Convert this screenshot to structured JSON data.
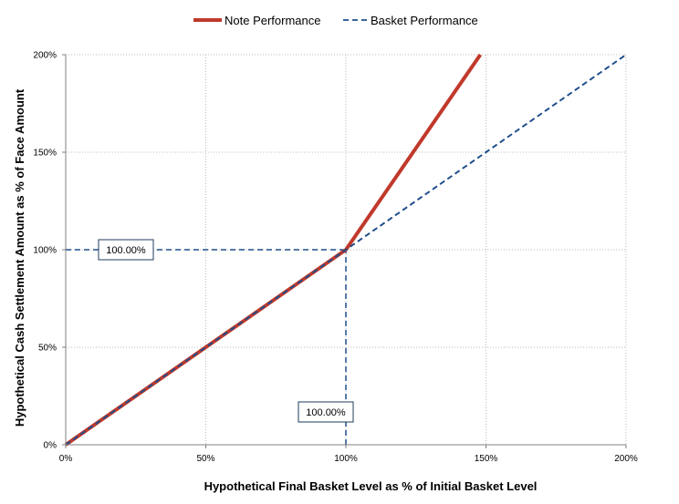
{
  "chart_data": {
    "type": "line",
    "xlabel": "Hypothetical Final Basket Level as % of Initial Basket Level",
    "ylabel": "Hypothetical Cash Settlement Amount as % of Face Amount",
    "xlim": [
      0,
      200
    ],
    "ylim": [
      0,
      200
    ],
    "xticks": [
      "0%",
      "50%",
      "100%",
      "150%",
      "200%"
    ],
    "yticks": [
      "0%",
      "50%",
      "100%",
      "150%",
      "200%"
    ],
    "grid": "dotted",
    "legend": "top-center",
    "series": [
      {
        "name": "Note Performance",
        "style": "solid",
        "color": "#c0392b",
        "x": [
          0,
          100,
          148
        ],
        "y": [
          0,
          100,
          200
        ]
      },
      {
        "name": "Basket Performance",
        "style": "dashed",
        "color": "#1f4e8c",
        "x": [
          0,
          100,
          200
        ],
        "y": [
          0,
          100,
          200
        ]
      }
    ],
    "reference_lines": [
      {
        "orientation": "horizontal",
        "x": [
          0,
          100
        ],
        "y": [
          100,
          100
        ]
      },
      {
        "orientation": "vertical",
        "x": [
          100,
          100
        ],
        "y": [
          0,
          100
        ]
      }
    ],
    "annotations": [
      {
        "text": "100.00%",
        "refers_to": "y",
        "value": 100
      },
      {
        "text": "100.00%",
        "refers_to": "x",
        "value": 100
      }
    ]
  }
}
